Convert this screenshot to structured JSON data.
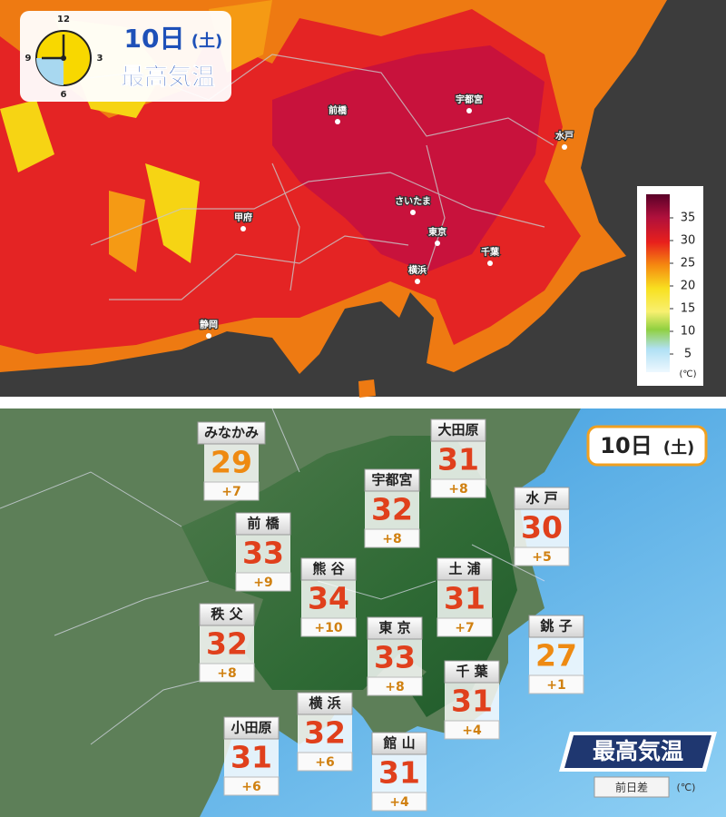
{
  "top": {
    "header": {
      "date": "10日",
      "day": "(土)",
      "title": "最高気温"
    },
    "clock": [
      "12",
      "3",
      "6",
      "9"
    ],
    "cities": [
      "前橋",
      "宇都宮",
      "水戸",
      "さいたま",
      "甲府",
      "東京",
      "千葉",
      "横浜",
      "静岡"
    ],
    "legend": {
      "ticks": [
        35,
        30,
        25,
        20,
        15,
        10,
        5
      ],
      "unit": "(℃)"
    }
  },
  "bottom": {
    "header": {
      "date": "10日",
      "day": "(土)",
      "title": "最高気温",
      "diff_label": "前日差",
      "unit": "(℃)"
    },
    "stations": [
      {
        "name": "みなかみ",
        "temp": 29,
        "diff": "+7",
        "color": "#ee8a12"
      },
      {
        "name": "大田原",
        "temp": 31,
        "diff": "+8",
        "color": "#e0401c"
      },
      {
        "name": "宇都宮",
        "temp": 32,
        "diff": "+8",
        "color": "#e0401c"
      },
      {
        "name": "水 戸",
        "temp": 30,
        "diff": "+5",
        "color": "#e0401c"
      },
      {
        "name": "前 橋",
        "temp": 33,
        "diff": "+9",
        "color": "#e0401c"
      },
      {
        "name": "熊 谷",
        "temp": 34,
        "diff": "+10",
        "color": "#e0401c"
      },
      {
        "name": "土 浦",
        "temp": 31,
        "diff": "+7",
        "color": "#e0401c"
      },
      {
        "name": "秩 父",
        "temp": 32,
        "diff": "+8",
        "color": "#e0401c"
      },
      {
        "name": "東 京",
        "temp": 33,
        "diff": "+8",
        "color": "#e0401c"
      },
      {
        "name": "銚 子",
        "temp": 27,
        "diff": "+1",
        "color": "#ee8a12"
      },
      {
        "name": "千 葉",
        "temp": 31,
        "diff": "+4",
        "color": "#e0401c"
      },
      {
        "name": "横 浜",
        "temp": 32,
        "diff": "+6",
        "color": "#e0401c"
      },
      {
        "name": "小田原",
        "temp": 31,
        "diff": "+6",
        "color": "#e0401c"
      },
      {
        "name": "館 山",
        "temp": 31,
        "diff": "+4",
        "color": "#e0401c"
      }
    ]
  }
}
